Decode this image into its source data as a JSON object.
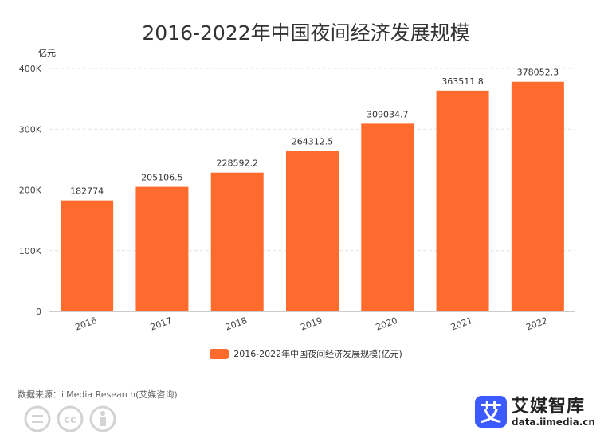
{
  "chart_data": {
    "type": "bar",
    "title": "2016-2022年中国夜间经济发展规模",
    "unit_label": "亿元",
    "categories": [
      "2016",
      "2017",
      "2018",
      "2019",
      "2020",
      "2021",
      "2022"
    ],
    "series": [
      {
        "name": "2016-2022年中国夜间经济发展规模(亿元)",
        "values": [
          182774,
          205106.5,
          228592.2,
          264312.5,
          309034.7,
          363511.8,
          378052.3
        ],
        "value_labels": [
          "182774",
          "205106.5",
          "228592.2",
          "264312.5",
          "309034.7",
          "363511.8",
          "378052.3"
        ]
      }
    ],
    "ylim": [
      0,
      400000
    ],
    "y_ticks": [
      0,
      100000,
      200000,
      300000,
      400000
    ],
    "y_tick_labels": [
      "0",
      "100K",
      "200K",
      "300K",
      "400K"
    ],
    "grid": true,
    "legend_position": "bottom",
    "bar_color": "#ff6b2d"
  },
  "footer": {
    "source": "数据来源：iiMedia Research(艾媒咨询)"
  },
  "logo": {
    "name": "艾媒智库",
    "url": "data.iimedia.cn",
    "mark": "艾",
    "color": "#3d5afe"
  }
}
